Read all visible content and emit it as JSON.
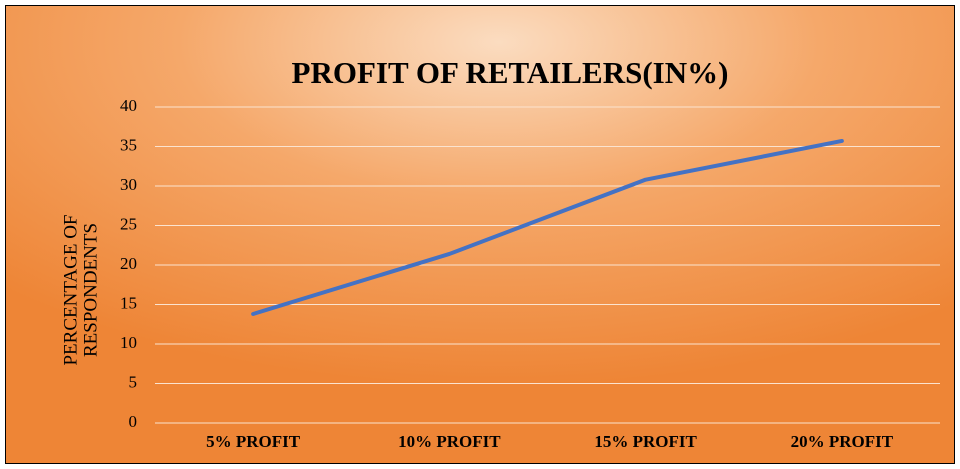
{
  "chart_data": {
    "type": "line",
    "title": "PROFIT OF RETAILERS(IN%)",
    "ylabel": [
      "PERCENTAGE OF",
      "RESPONDENTS"
    ],
    "categories": [
      "5% PROFIT",
      "10% PROFIT",
      "15% PROFIT",
      "20% PROFIT"
    ],
    "values": [
      13.8,
      21.4,
      30.8,
      35.7
    ],
    "color": "#4472c4",
    "ylim": [
      0,
      40
    ],
    "yticks": [
      0,
      5,
      10,
      15,
      20,
      25,
      30,
      35,
      40
    ],
    "grid": true
  }
}
